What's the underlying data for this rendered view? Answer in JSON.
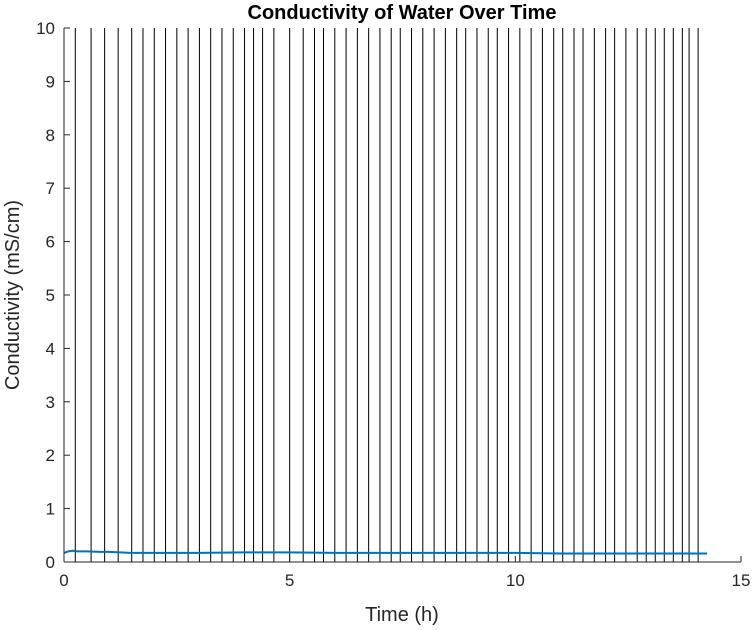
{
  "chart_data": {
    "type": "line",
    "title": "Conductivity of Water Over Time",
    "xlabel": "Time (h)",
    "ylabel": "Conductivity (mS/cm)",
    "xlim": [
      0,
      15
    ],
    "ylim": [
      0,
      10
    ],
    "xticks": [
      "0",
      "5",
      "10",
      "15"
    ],
    "yticks": [
      "0",
      "1",
      "2",
      "3",
      "4",
      "5",
      "6",
      "7",
      "8",
      "9",
      "10"
    ],
    "grid": false,
    "legend": "none",
    "series": [
      {
        "color": "#0072BD",
        "x": [
          0,
          0.1,
          0.2,
          0.3,
          0.5,
          0.8,
          1.0,
          1.5,
          2.0,
          3.0,
          4.0,
          5.0,
          6.0,
          7.0,
          8.0,
          9.0,
          10.0,
          11.0,
          12.0,
          13.0,
          14.0,
          14.25
        ],
        "y": [
          0.17,
          0.2,
          0.21,
          0.2,
          0.2,
          0.19,
          0.19,
          0.17,
          0.17,
          0.17,
          0.18,
          0.18,
          0.17,
          0.17,
          0.17,
          0.17,
          0.17,
          0.16,
          0.16,
          0.16,
          0.16,
          0.16
        ]
      }
    ],
    "vlines": {
      "color": "#000000",
      "x": [
        0.25,
        0.6,
        0.9,
        1.2,
        1.5,
        1.75,
        2.0,
        2.25,
        2.5,
        2.75,
        3.0,
        3.25,
        3.5,
        3.75,
        4.0,
        4.2,
        4.4,
        4.65,
        5.0,
        5.3,
        5.55,
        5.75,
        6.0,
        6.25,
        6.5,
        6.75,
        7.0,
        7.25,
        7.45,
        7.7,
        7.95,
        8.2,
        8.45,
        8.7,
        8.9,
        9.15,
        9.4,
        9.6,
        9.85,
        10.1,
        10.35,
        10.6,
        10.85,
        11.05,
        11.3,
        11.5,
        11.75,
        12.0,
        12.2,
        12.45,
        12.7,
        12.9,
        13.1,
        13.3,
        13.5,
        13.7,
        13.85,
        14.05
      ]
    }
  }
}
